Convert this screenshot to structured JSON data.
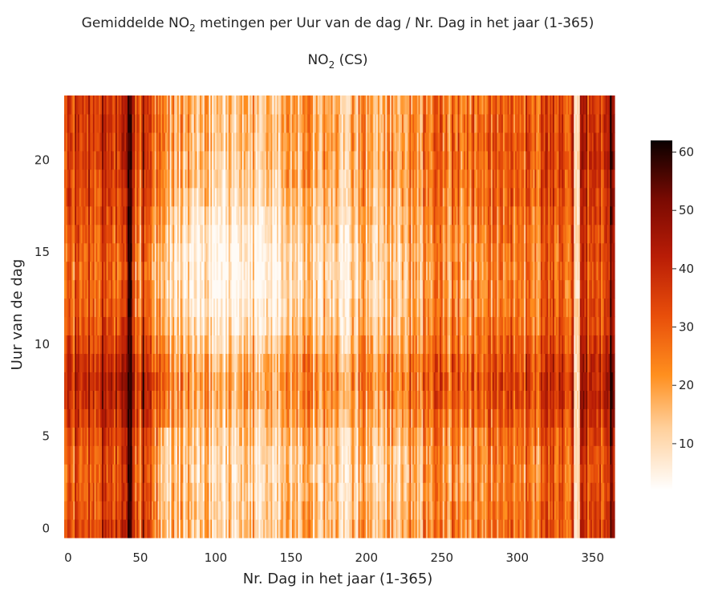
{
  "chart_data": {
    "type": "heatmap",
    "title": "Gemiddelde NO₂ metingen per Uur van de dag / Nr. Dag in het jaar (1-365)",
    "title_parts": {
      "before_sub": "Gemiddelde NO",
      "sub": "2",
      "after_sub": " metingen per Uur van de dag / Nr. Dag in het jaar (1-365)"
    },
    "subtitle": "NO₂ (CS)",
    "subtitle_parts": {
      "before_sub": "NO",
      "sub": "2",
      "after_sub": " (CS)"
    },
    "xlabel": "Nr. Dag in het jaar (1-365)",
    "ylabel": "Uur van de dag",
    "x_ticks": [
      "0",
      "50",
      "100",
      "150",
      "200",
      "250",
      "300",
      "350"
    ],
    "y_ticks": [
      "0",
      "5",
      "10",
      "15",
      "20"
    ],
    "xlim": [
      0,
      365
    ],
    "ylim": [
      0,
      23
    ],
    "colorbar": {
      "min": 2,
      "max": 62,
      "ticks": [
        "10",
        "20",
        "30",
        "40",
        "50",
        "60"
      ]
    },
    "colormap": "gist_heat_r (white → orange → red → black)",
    "grid": false,
    "values_note": "Mean NO2 concentration per hour (0-23) and day of year; high values (40-60) on days ~15-60 and ~330-365, low values (3-15) during daytime hours in days ~60-130."
  }
}
